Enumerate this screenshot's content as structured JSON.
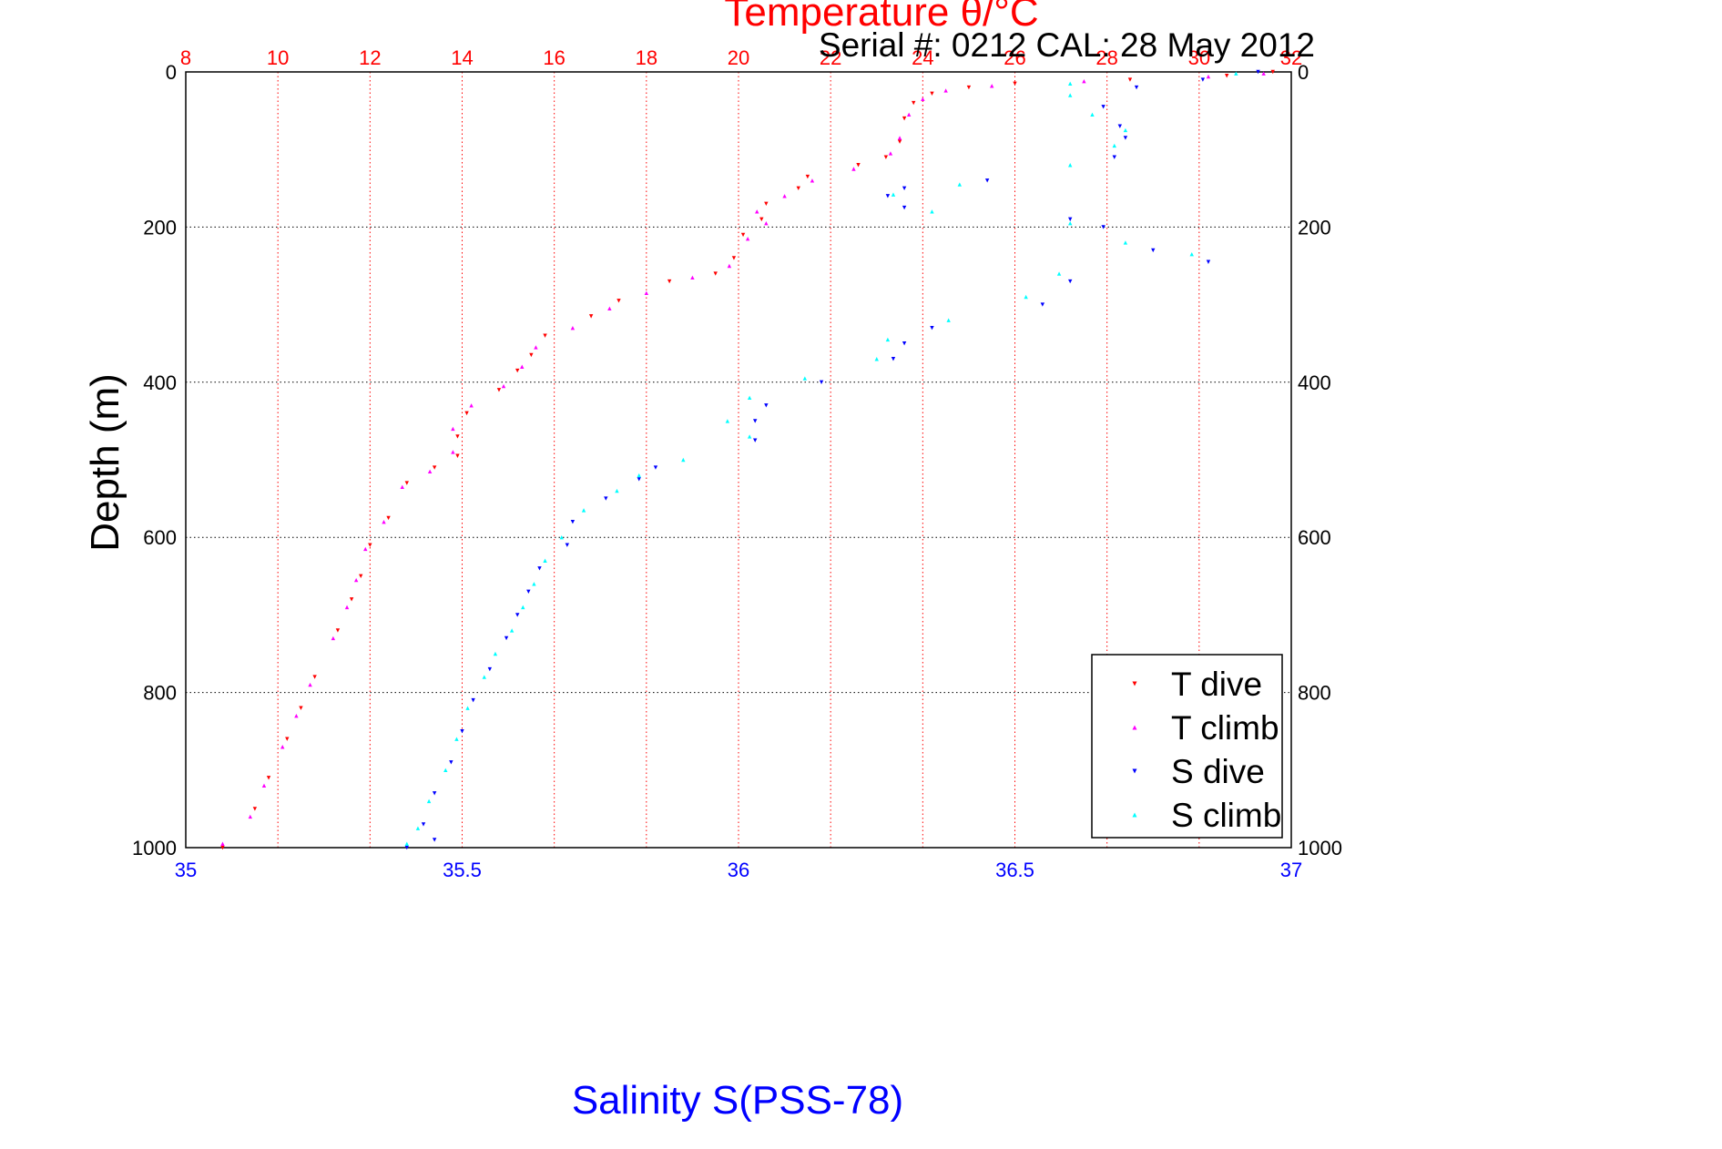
{
  "chart_data": {
    "type": "scatter",
    "title": "Temperature θ/°C",
    "subtitle": "Serial #: 0212  CAL: 28 May 2012",
    "xlabel": "Salinity S(PSS-78)",
    "ylabel": "Depth (m)",
    "x_top": {
      "label": "Temperature θ/°C",
      "range": [
        8,
        32
      ],
      "ticks": [
        "8",
        "10",
        "12",
        "14",
        "16",
        "18",
        "20",
        "22",
        "24",
        "26",
        "28",
        "30",
        "32"
      ],
      "color": "#ff0000"
    },
    "x_bottom": {
      "label": "Salinity S(PSS-78)",
      "range": [
        35,
        37
      ],
      "ticks": [
        "35",
        "35.5",
        "36",
        "36.5",
        "37"
      ],
      "color": "#0000ff"
    },
    "y": {
      "range": [
        0,
        1000
      ],
      "reversed": true,
      "ticks": [
        "0",
        "200",
        "400",
        "600",
        "800",
        "1000"
      ]
    },
    "grid": true,
    "legend_position": "bottom-right",
    "series": [
      {
        "name": "T dive",
        "axis": "top",
        "color": "#ff0000",
        "marker": "triangle-down",
        "points": [
          [
            31.6,
            0
          ],
          [
            30.6,
            5
          ],
          [
            28.5,
            10
          ],
          [
            26,
            15
          ],
          [
            25,
            20
          ],
          [
            24.2,
            28
          ],
          [
            23.8,
            40
          ],
          [
            23.6,
            60
          ],
          [
            23.5,
            90
          ],
          [
            23.2,
            110
          ],
          [
            22.6,
            120
          ],
          [
            21.5,
            135
          ],
          [
            21.3,
            150
          ],
          [
            20.6,
            170
          ],
          [
            20.5,
            190
          ],
          [
            20.1,
            210
          ],
          [
            19.9,
            240
          ],
          [
            19.5,
            260
          ],
          [
            18.5,
            270
          ],
          [
            17.4,
            295
          ],
          [
            16.8,
            315
          ],
          [
            15.8,
            340
          ],
          [
            15.5,
            365
          ],
          [
            15.2,
            385
          ],
          [
            14.8,
            410
          ],
          [
            14.1,
            440
          ],
          [
            13.9,
            470
          ],
          [
            13.9,
            495
          ],
          [
            13.4,
            510
          ],
          [
            12.8,
            530
          ],
          [
            12.4,
            575
          ],
          [
            12.0,
            610
          ],
          [
            11.8,
            650
          ],
          [
            11.6,
            680
          ],
          [
            11.3,
            720
          ],
          [
            10.8,
            780
          ],
          [
            10.5,
            820
          ],
          [
            10.2,
            860
          ],
          [
            9.8,
            910
          ],
          [
            9.5,
            950
          ],
          [
            8.8,
            1000
          ]
        ]
      },
      {
        "name": "T climb",
        "axis": "top",
        "color": "#ff00ff",
        "marker": "triangle-up",
        "points": [
          [
            31.4,
            2
          ],
          [
            30.2,
            6
          ],
          [
            27.5,
            12
          ],
          [
            25.5,
            18
          ],
          [
            24.5,
            24
          ],
          [
            24,
            35
          ],
          [
            23.7,
            55
          ],
          [
            23.5,
            85
          ],
          [
            23.3,
            105
          ],
          [
            22.5,
            125
          ],
          [
            21.6,
            140
          ],
          [
            21.0,
            160
          ],
          [
            20.4,
            180
          ],
          [
            20.6,
            195
          ],
          [
            20.2,
            215
          ],
          [
            19.8,
            250
          ],
          [
            19.0,
            265
          ],
          [
            18.0,
            285
          ],
          [
            17.2,
            305
          ],
          [
            16.4,
            330
          ],
          [
            15.6,
            355
          ],
          [
            15.3,
            380
          ],
          [
            14.9,
            405
          ],
          [
            14.2,
            430
          ],
          [
            13.8,
            460
          ],
          [
            13.8,
            490
          ],
          [
            13.3,
            515
          ],
          [
            12.7,
            535
          ],
          [
            12.3,
            580
          ],
          [
            11.9,
            615
          ],
          [
            11.7,
            655
          ],
          [
            11.5,
            690
          ],
          [
            11.2,
            730
          ],
          [
            10.7,
            790
          ],
          [
            10.4,
            830
          ],
          [
            10.1,
            870
          ],
          [
            9.7,
            920
          ],
          [
            9.4,
            960
          ],
          [
            8.8,
            995
          ]
        ]
      },
      {
        "name": "S dive",
        "axis": "bottom",
        "color": "#0000ff",
        "marker": "triangle-down",
        "points": [
          [
            36.94,
            0
          ],
          [
            36.84,
            10
          ],
          [
            36.72,
            20
          ],
          [
            36.66,
            45
          ],
          [
            36.69,
            70
          ],
          [
            36.7,
            85
          ],
          [
            36.68,
            110
          ],
          [
            36.45,
            140
          ],
          [
            36.3,
            150
          ],
          [
            36.27,
            160
          ],
          [
            36.3,
            175
          ],
          [
            36.6,
            190
          ],
          [
            36.66,
            200
          ],
          [
            36.75,
            230
          ],
          [
            36.85,
            245
          ],
          [
            36.6,
            270
          ],
          [
            36.55,
            300
          ],
          [
            36.35,
            330
          ],
          [
            36.3,
            350
          ],
          [
            36.28,
            370
          ],
          [
            36.15,
            400
          ],
          [
            36.05,
            430
          ],
          [
            36.03,
            450
          ],
          [
            36.03,
            475
          ],
          [
            35.85,
            510
          ],
          [
            35.82,
            525
          ],
          [
            35.76,
            550
          ],
          [
            35.7,
            580
          ],
          [
            35.69,
            610
          ],
          [
            35.64,
            640
          ],
          [
            35.62,
            670
          ],
          [
            35.6,
            700
          ],
          [
            35.58,
            730
          ],
          [
            35.55,
            770
          ],
          [
            35.52,
            810
          ],
          [
            35.5,
            850
          ],
          [
            35.48,
            890
          ],
          [
            35.45,
            930
          ],
          [
            35.43,
            970
          ],
          [
            35.45,
            990
          ],
          [
            35.4,
            1000
          ]
        ]
      },
      {
        "name": "S climb",
        "axis": "bottom",
        "color": "#00ffff",
        "marker": "triangle-up",
        "points": [
          [
            36.9,
            2
          ],
          [
            36.6,
            15
          ],
          [
            36.6,
            30
          ],
          [
            36.64,
            55
          ],
          [
            36.7,
            75
          ],
          [
            36.68,
            95
          ],
          [
            36.6,
            120
          ],
          [
            36.4,
            145
          ],
          [
            36.28,
            158
          ],
          [
            36.35,
            180
          ],
          [
            36.6,
            195
          ],
          [
            36.7,
            220
          ],
          [
            36.82,
            235
          ],
          [
            36.58,
            260
          ],
          [
            36.52,
            290
          ],
          [
            36.38,
            320
          ],
          [
            36.27,
            345
          ],
          [
            36.25,
            370
          ],
          [
            36.12,
            395
          ],
          [
            36.02,
            420
          ],
          [
            35.98,
            450
          ],
          [
            36.02,
            470
          ],
          [
            35.9,
            500
          ],
          [
            35.82,
            520
          ],
          [
            35.78,
            540
          ],
          [
            35.72,
            565
          ],
          [
            35.68,
            600
          ],
          [
            35.65,
            630
          ],
          [
            35.63,
            660
          ],
          [
            35.61,
            690
          ],
          [
            35.59,
            720
          ],
          [
            35.56,
            750
          ],
          [
            35.54,
            780
          ],
          [
            35.51,
            820
          ],
          [
            35.49,
            860
          ],
          [
            35.47,
            900
          ],
          [
            35.44,
            940
          ],
          [
            35.42,
            975
          ],
          [
            35.4,
            995
          ]
        ]
      }
    ]
  }
}
